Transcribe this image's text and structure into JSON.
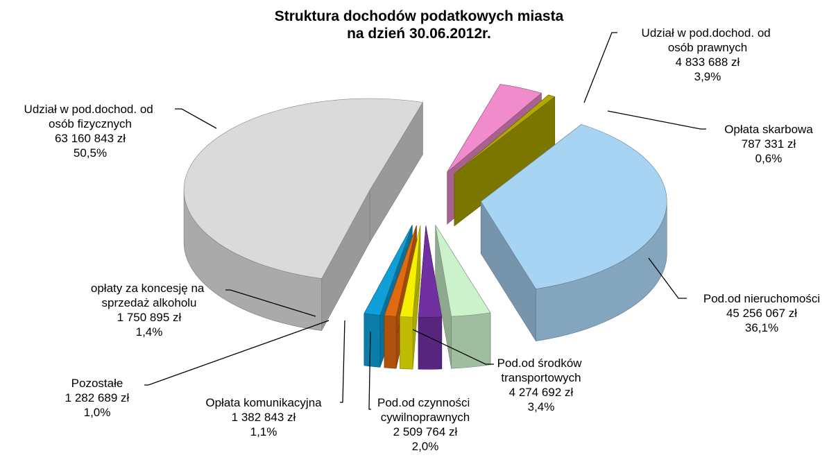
{
  "chart_data": {
    "type": "pie3d",
    "title": [
      "Struktura dochodów podatkowych miasta",
      "na dzień 30.06.2012r."
    ],
    "categories": [
      "Udział w pod.dochod. od osób fizycznych",
      "Udział w pod.dochod. od osób prawnych",
      "Opłata skarbowa",
      "Pod.od nieruchomości",
      "Pod.od środków transportowych",
      "Pod.od czynności cywilnoprawnych",
      "Opłata komunikacyjna",
      "Pozostałe",
      "opłaty za koncesję na sprzedaż alkoholu"
    ],
    "values": [
      63160843,
      4833688,
      787331,
      45256067,
      4274692,
      2509764,
      1382843,
      1282689,
      1750895
    ],
    "value_labels": [
      "63 160 843 zł",
      "4 833 688 zł",
      "787 331 zł",
      "45 256 067 zł",
      "4 274 692 zł",
      "2 509 764 zł",
      "1 382 843 zł",
      "1 282 689 zł",
      "1 750 895 zł"
    ],
    "percent_labels": [
      "50,5%",
      "3,9%",
      "0,6%",
      "36,1%",
      "3,4%",
      "2,0%",
      "1,1%",
      "1,0%",
      "1,4%"
    ],
    "colors": [
      "#dadada",
      "#f08ccc",
      "#b0a800",
      "#a8d4f4",
      "#ccf2cc",
      "#7030a0",
      "#f4f000",
      "#e06a10",
      "#10a0d8"
    ]
  }
}
